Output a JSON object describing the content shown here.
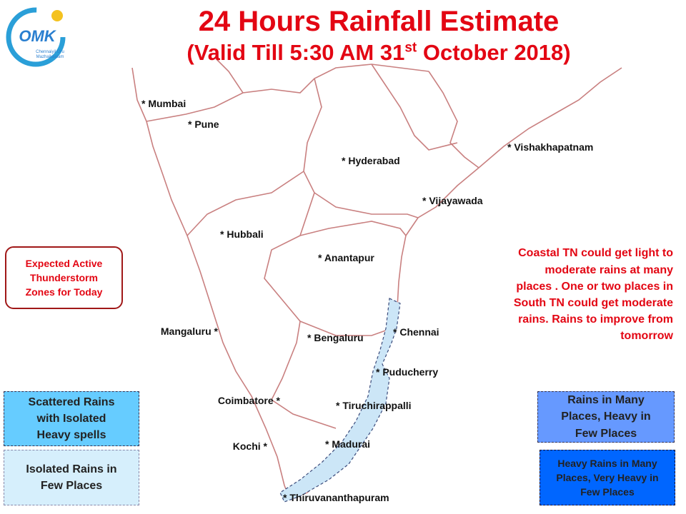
{
  "header": {
    "title": "24 Hours Rainfall Estimate",
    "subtitle_before": "(Valid Till 5:30 AM 31",
    "subtitle_sup": "st",
    "subtitle_after": " October 2018)"
  },
  "logo": {
    "text": "OMK",
    "tagline_1": "Chennaiyil Oru",
    "tagline_2": "Mazhaikaalam"
  },
  "cities": [
    "* Mumbai",
    "* Pune",
    "* Hyderabad",
    "* Vishakhapatnam",
    "* Vijayawada",
    "* Hubbali",
    "* Anantapur",
    "Mangaluru *",
    "* Bengaluru",
    "* Chennai",
    "* Puducherry",
    "Coimbatore *",
    "* Tiruchirappalli",
    "Kochi *",
    "* Madurai",
    "* Thiruvananthapuram"
  ],
  "thunderstorm_box": {
    "lines": [
      "Expected Active",
      "Thunderstorm",
      "Zones for Today"
    ]
  },
  "note": {
    "lines": [
      "Coastal TN could get light to",
      "moderate rains at many",
      "places .  One or two places in",
      "South TN could get moderate",
      "rains.  Rains to improve from",
      "tomorrow"
    ]
  },
  "legend": [
    {
      "lines": [
        "Scattered Rains",
        "with Isolated",
        "Heavy spells"
      ]
    },
    {
      "lines": [
        "Isolated Rains in",
        "Few  Places"
      ]
    },
    {
      "lines": [
        "Rains in Many",
        "Places, Heavy in",
        "Few Places"
      ]
    },
    {
      "lines": [
        "Heavy Rains in Many",
        "Places, Very Heavy in",
        "Few Places"
      ]
    }
  ]
}
